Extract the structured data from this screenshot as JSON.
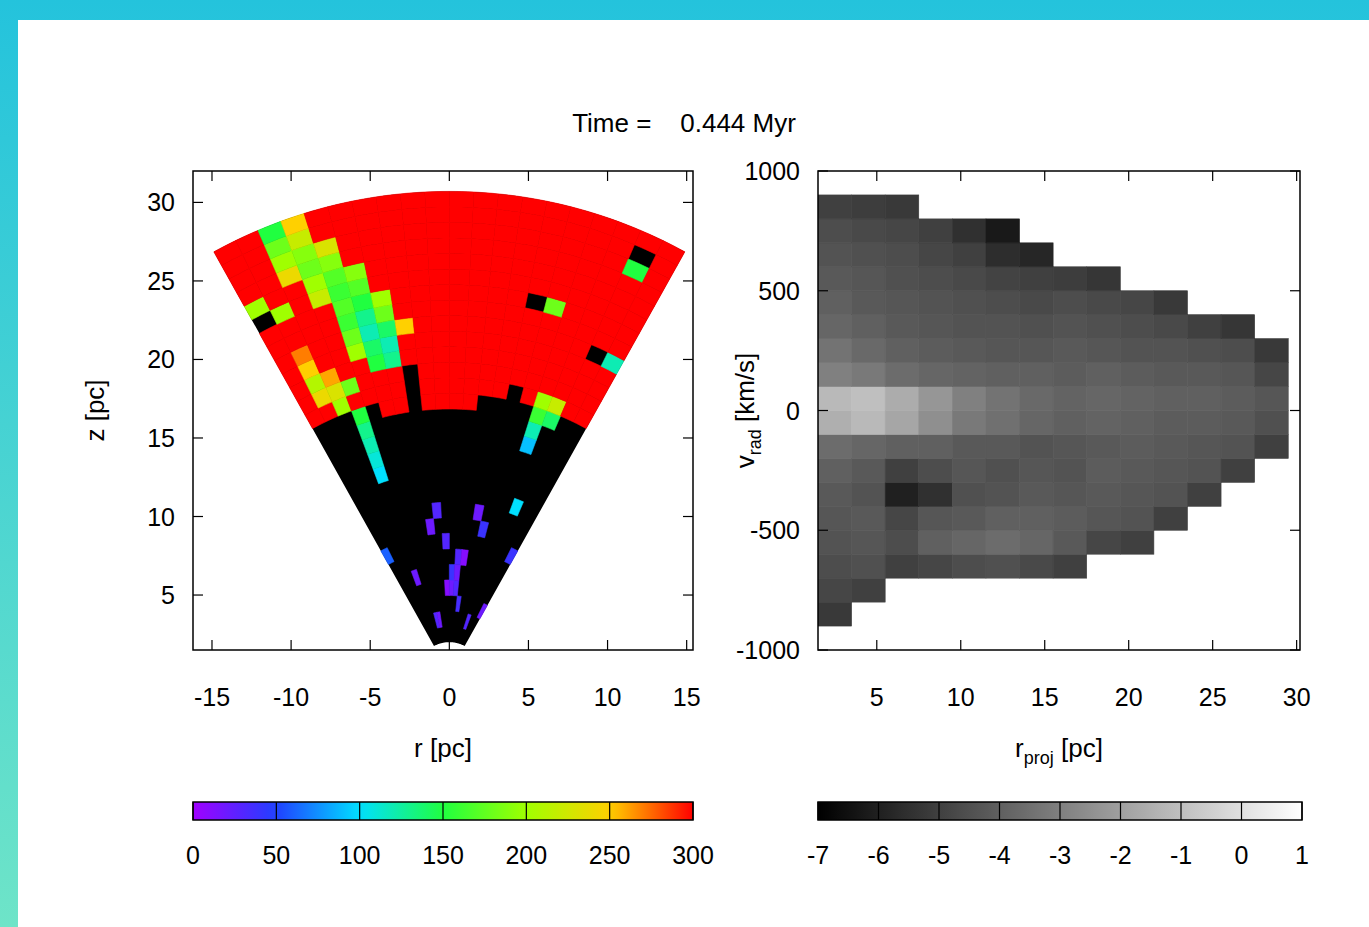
{
  "title": "Time =    0.444 Myr",
  "chart_data": [
    {
      "type": "heatmap",
      "color": "rainbow",
      "xlabel": "r [pc]",
      "ylabel": "z [pc]",
      "xlim": [
        -16.2,
        15.4
      ],
      "ylim": [
        1.5,
        32
      ],
      "xticks": [
        -15,
        -10,
        -5,
        0,
        5,
        10,
        15
      ],
      "yticks": [
        5,
        10,
        15,
        20,
        25,
        30
      ],
      "grid": false,
      "radius_range": [
        2,
        30.7
      ],
      "angle_range": [
        -29,
        29
      ],
      "colorbar": {
        "range": [
          0,
          300
        ],
        "ticks": [
          0,
          50,
          100,
          150,
          200,
          250,
          300
        ]
      },
      "cells": [
        [
          null,
          null,
          null,
          null,
          null,
          null,
          null,
          null,
          null,
          null,
          null,
          null,
          null,
          null,
          null,
          null,
          null,
          null,
          null,
          null
        ],
        [
          null,
          null,
          null,
          null,
          null,
          30,
          20,
          null,
          null,
          null,
          null,
          null,
          null,
          null,
          null,
          null,
          30,
          null,
          null,
          null
        ],
        [
          null,
          null,
          null,
          null,
          null,
          null,
          null,
          null,
          null,
          null,
          null,
          null,
          35,
          null,
          null,
          null,
          null,
          null,
          null,
          20
        ],
        [
          null,
          null,
          null,
          null,
          null,
          null,
          null,
          null,
          null,
          10,
          20,
          30,
          null,
          null,
          null,
          null,
          null,
          null,
          null,
          null
        ],
        [
          null,
          null,
          null,
          20,
          null,
          null,
          null,
          null,
          null,
          null,
          40,
          20,
          null,
          null,
          null,
          null,
          null,
          null,
          null,
          null
        ],
        [
          null,
          null,
          null,
          null,
          null,
          null,
          null,
          null,
          null,
          null,
          null,
          30,
          10,
          null,
          null,
          null,
          null,
          null,
          null,
          null
        ],
        [
          60,
          null,
          null,
          null,
          null,
          null,
          null,
          null,
          null,
          30,
          null,
          null,
          null,
          null,
          null,
          null,
          null,
          null,
          null,
          40
        ],
        [
          null,
          null,
          null,
          null,
          null,
          null,
          null,
          20,
          null,
          null,
          null,
          null,
          null,
          null,
          40,
          null,
          null,
          null,
          null,
          null
        ],
        [
          null,
          null,
          null,
          null,
          null,
          null,
          null,
          null,
          30,
          null,
          null,
          null,
          null,
          20,
          null,
          null,
          null,
          null,
          null,
          null
        ],
        [
          null,
          null,
          null,
          null,
          null,
          null,
          null,
          null,
          null,
          null,
          null,
          null,
          null,
          null,
          null,
          null,
          null,
          100,
          null,
          null
        ],
        [
          null,
          null,
          null,
          null,
          null,
          null,
          null,
          null,
          null,
          null,
          null,
          null,
          null,
          null,
          null,
          null,
          null,
          null,
          null,
          null
        ],
        [
          null,
          null,
          null,
          100,
          null,
          null,
          null,
          null,
          null,
          null,
          null,
          null,
          null,
          null,
          null,
          null,
          null,
          null,
          null,
          null
        ],
        [
          null,
          null,
          null,
          110,
          null,
          null,
          null,
          null,
          null,
          null,
          null,
          null,
          null,
          null,
          null,
          null,
          null,
          null,
          null,
          null
        ],
        [
          null,
          null,
          null,
          120,
          null,
          null,
          null,
          null,
          null,
          null,
          null,
          null,
          null,
          null,
          null,
          null,
          90,
          null,
          null,
          null
        ],
        [
          null,
          null,
          null,
          130,
          null,
          null,
          null,
          null,
          null,
          null,
          null,
          null,
          null,
          null,
          null,
          null,
          120,
          null,
          null,
          null
        ],
        [
          null,
          null,
          null,
          150,
          null,
          300,
          300,
          null,
          300,
          300,
          300,
          300,
          null,
          null,
          null,
          null,
          160,
          140,
          null,
          null
        ],
        [
          300,
          300,
          200,
          300,
          300,
          300,
          300,
          null,
          300,
          300,
          300,
          300,
          300,
          300,
          null,
          300,
          200,
          220,
          300,
          300
        ],
        [
          300,
          240,
          230,
          180,
          300,
          300,
          300,
          null,
          300,
          300,
          300,
          300,
          300,
          300,
          300,
          300,
          300,
          300,
          300,
          300
        ],
        [
          300,
          210,
          260,
          300,
          300,
          150,
          130,
          300,
          300,
          300,
          300,
          300,
          300,
          300,
          300,
          300,
          300,
          300,
          300,
          300
        ],
        [
          300,
          250,
          300,
          300,
          200,
          140,
          120,
          300,
          300,
          300,
          300,
          300,
          300,
          300,
          300,
          300,
          300,
          300,
          300,
          300
        ],
        [
          300,
          270,
          300,
          300,
          180,
          120,
          140,
          250,
          300,
          300,
          300,
          300,
          300,
          300,
          300,
          300,
          300,
          300,
          null,
          120
        ],
        [
          300,
          300,
          300,
          300,
          160,
          130,
          180,
          300,
          300,
          300,
          300,
          300,
          300,
          300,
          300,
          300,
          300,
          300,
          300,
          300
        ],
        [
          300,
          300,
          300,
          300,
          170,
          150,
          200,
          300,
          300,
          300,
          300,
          300,
          300,
          300,
          null,
          180,
          300,
          300,
          300,
          300
        ],
        [
          null,
          200,
          300,
          220,
          160,
          170,
          300,
          300,
          300,
          300,
          300,
          300,
          300,
          300,
          300,
          300,
          300,
          300,
          300,
          300
        ],
        [
          200,
          300,
          300,
          200,
          170,
          190,
          300,
          300,
          300,
          300,
          300,
          300,
          300,
          300,
          300,
          300,
          300,
          300,
          300,
          300
        ],
        [
          300,
          300,
          240,
          180,
          190,
          300,
          300,
          300,
          300,
          300,
          300,
          300,
          300,
          300,
          300,
          300,
          300,
          300,
          300,
          300
        ],
        [
          300,
          300,
          200,
          190,
          230,
          300,
          300,
          300,
          300,
          300,
          300,
          300,
          300,
          300,
          300,
          300,
          300,
          300,
          150,
          300
        ],
        [
          300,
          300,
          180,
          220,
          300,
          300,
          300,
          300,
          300,
          300,
          300,
          300,
          300,
          300,
          300,
          300,
          300,
          300,
          null,
          300
        ],
        [
          300,
          300,
          150,
          250,
          300,
          300,
          300,
          300,
          300,
          300,
          300,
          300,
          300,
          300,
          300,
          300,
          300,
          300,
          300,
          300
        ]
      ]
    },
    {
      "type": "heatmap",
      "color": "gray",
      "xlabel": {
        "base": "r",
        "sub": "proj",
        "rest": " [pc]"
      },
      "ylabel": {
        "base": "v",
        "sub": "rad",
        "rest": " [km/s]"
      },
      "xlim": [
        1.5,
        30.2
      ],
      "ylim": [
        -1000,
        1000
      ],
      "xticks": [
        5,
        10,
        15,
        20,
        25,
        30
      ],
      "yticks": [
        -1000,
        -500,
        0,
        500,
        1000
      ],
      "grid": false,
      "x_range": [
        1.5,
        29.5
      ],
      "y_range": [
        -1000,
        1000
      ],
      "colorbar": {
        "range": [
          -7,
          1
        ],
        "ticks": [
          -7,
          -6,
          -5,
          -4,
          -3,
          -2,
          -1,
          0,
          1
        ]
      },
      "cells": [
        [
          null,
          null,
          null,
          null,
          null,
          null,
          null,
          null,
          null,
          null,
          null,
          null,
          null,
          null
        ],
        [
          -5.2,
          null,
          null,
          null,
          null,
          null,
          null,
          null,
          null,
          null,
          null,
          null,
          null,
          null
        ],
        [
          -4.8,
          -5,
          null,
          null,
          null,
          null,
          null,
          null,
          null,
          null,
          null,
          null,
          null,
          null
        ],
        [
          -4.6,
          -4.5,
          -5,
          -4.8,
          -4.6,
          -4.5,
          -4.7,
          -5,
          null,
          null,
          null,
          null,
          null,
          null
        ],
        [
          -4.4,
          -4.3,
          -4.6,
          -4,
          -3.8,
          -3.6,
          -3.8,
          -4.2,
          -4.8,
          -5,
          null,
          null,
          null,
          null
        ],
        [
          -4.3,
          -4.2,
          -4.8,
          -4.3,
          -4.2,
          -4,
          -4,
          -4.1,
          -4.3,
          -4.4,
          -5,
          null,
          null,
          null
        ],
        [
          -4.2,
          -4.4,
          -6,
          -5.5,
          -4.5,
          -4.4,
          -4.2,
          -4.3,
          -4.2,
          -4.3,
          -4.4,
          -5,
          null,
          null
        ],
        [
          -4,
          -4.2,
          -5,
          -4.6,
          -4.3,
          -4.5,
          -4.3,
          -4.4,
          -4.1,
          -4.2,
          -4.3,
          -4.4,
          -5,
          null
        ],
        [
          -3.6,
          -3.8,
          -4,
          -4,
          -4.2,
          -4.2,
          -4.4,
          -4.3,
          -4.2,
          -4.1,
          -4.2,
          -4.3,
          -4.4,
          -5
        ],
        [
          -1.5,
          -1.2,
          -1.8,
          -2.5,
          -3.2,
          -3.5,
          -3.8,
          -4,
          -3.9,
          -4,
          -4.1,
          -4.1,
          -4.2,
          -4.5
        ],
        [
          -1.2,
          -1,
          -1.6,
          -2.3,
          -3,
          -3.4,
          -3.7,
          -3.9,
          -3.8,
          -3.9,
          -4,
          -4,
          -4.1,
          -4.3
        ],
        [
          -3,
          -3.2,
          -3.6,
          -3.8,
          -3.9,
          -4,
          -4,
          -4.1,
          -4,
          -4.1,
          -4.2,
          -4.2,
          -4.3,
          -4.8
        ],
        [
          -3.4,
          -3.7,
          -4,
          -4.1,
          -4.2,
          -4.3,
          -4.3,
          -4.2,
          -4.3,
          -4.4,
          -4.4,
          -4.5,
          -4.6,
          -5.2
        ],
        [
          -3.8,
          -4,
          -4.2,
          -4.3,
          -4.4,
          -4.4,
          -4.5,
          -4.4,
          -4.5,
          -4.6,
          -4.7,
          -5,
          -5.3,
          null
        ],
        [
          -4,
          -4.2,
          -4.3,
          -4.4,
          -4.5,
          -4.6,
          -4.7,
          -4.6,
          -4.7,
          -4.8,
          -5.2,
          null,
          null,
          null
        ],
        [
          -4.2,
          -4.3,
          -4.5,
          -4.6,
          -4.7,
          -4.9,
          -5,
          -5.1,
          -5.3,
          null,
          null,
          null,
          null,
          null
        ],
        [
          -4.4,
          -4.5,
          -4.6,
          -4.8,
          -5,
          -5.6,
          -5.8,
          null,
          null,
          null,
          null,
          null,
          null,
          null
        ],
        [
          -4.6,
          -4.7,
          -4.8,
          -5,
          -5.5,
          -6.2,
          null,
          null,
          null,
          null,
          null,
          null,
          null,
          null
        ],
        [
          -5,
          -5.1,
          -5.2,
          null,
          null,
          null,
          null,
          null,
          null,
          null,
          null,
          null,
          null,
          null
        ],
        [
          null,
          null,
          null,
          null,
          null,
          null,
          null,
          null,
          null,
          null,
          null,
          null,
          null,
          null
        ]
      ]
    }
  ]
}
